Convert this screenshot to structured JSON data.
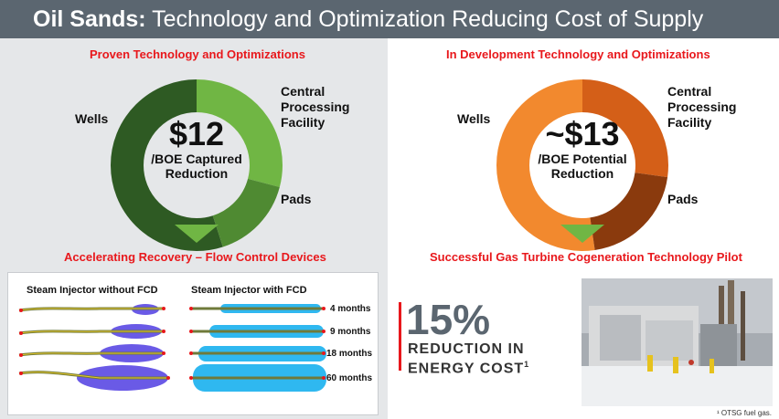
{
  "header": {
    "title_strong": "Oil Sands:",
    "title_rest": "Technology and Optimization Reducing Cost of Supply"
  },
  "proven": {
    "title": "Proven Technology and Optimizations",
    "center_value": "$12",
    "center_line1": "/BOE Captured",
    "center_line2": "Reduction",
    "labels": {
      "wells": "Wells",
      "cpf_line1": "Central",
      "cpf_line2": "Processing",
      "cpf_line3": "Facility",
      "pads": "Pads"
    },
    "colors": {
      "wells": "#2e5a23",
      "cpf": "#70b644",
      "pads": "#4f8a32",
      "arrow": "#70b644"
    }
  },
  "development": {
    "title": "In Development Technology and Optimizations",
    "center_value": "~$13",
    "center_line1": "/BOE Potential",
    "center_line2": "Reduction",
    "labels": {
      "wells": "Wells",
      "cpf_line1": "Central",
      "cpf_line2": "Processing",
      "cpf_line3": "Facility",
      "pads": "Pads"
    },
    "colors": {
      "wells": "#f2892e",
      "cpf": "#d45f18",
      "pads": "#8a3a0d",
      "arrow": "#70b644"
    }
  },
  "fcd": {
    "title": "Accelerating Recovery – Flow Control Devices",
    "without_label": "Steam Injector without FCD",
    "with_label": "Steam Injector with FCD",
    "months": [
      "4 months",
      "9 months",
      "18 months",
      "60 months"
    ]
  },
  "cogeneration": {
    "title": "Successful Gas Turbine Cogeneration Technology Pilot"
  },
  "stat": {
    "percent": "15%",
    "line1": "REDUCTION IN",
    "line2": "ENERGY COST",
    "footnote_ref": "1"
  },
  "footnote": {
    "text": "¹ OTSG fuel gas."
  },
  "colors": {
    "header_bg": "#5b6670",
    "accent_red": "#e8181c",
    "left_panel_bg": "#e5e7e9",
    "plume_without": "#6a5ae6",
    "plume_with": "#2fb8f0"
  }
}
